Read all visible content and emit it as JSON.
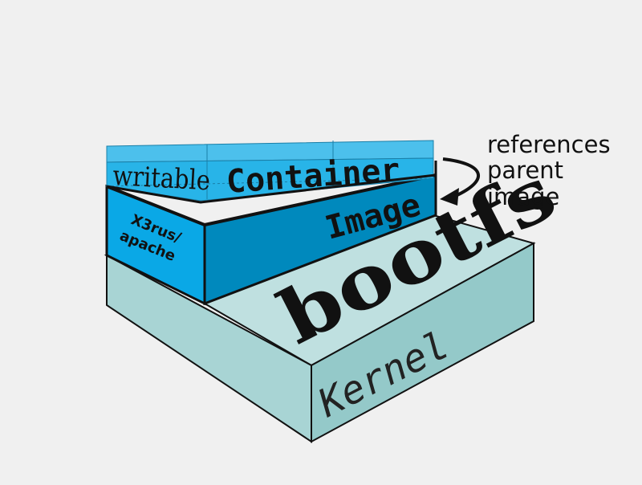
{
  "layers": {
    "writable_label": "writable",
    "container_label": "Container",
    "image_label": "Image",
    "image_side_label_line1": "X3rus/",
    "image_side_label_line2": "apache",
    "bootfs_label": "bootfs",
    "kernel_label": "Kernel"
  },
  "annotation": {
    "line1": "references",
    "line2": "parent",
    "line3": "image"
  },
  "colors": {
    "background": "#f0f0f0",
    "kernel_top": "#bfe0e0",
    "kernel_front": "#a8d4d4",
    "kernel_side": "#94c9c9",
    "image_side": "#0aa8e6",
    "image_front": "#0089bd",
    "container_fill": "#28b4e8",
    "outline": "#111111"
  }
}
